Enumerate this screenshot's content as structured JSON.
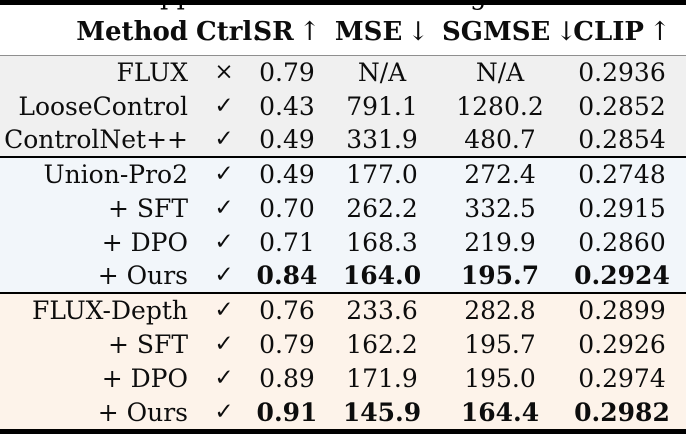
{
  "top_crop": {
    "fragments": [
      {
        "text": "pp"
      },
      {
        "text": "g"
      }
    ]
  },
  "table": {
    "columns": [
      {
        "label": "Method",
        "arrow": ""
      },
      {
        "label": "Ctrl.",
        "arrow": ""
      },
      {
        "label": "SR",
        "arrow": "↑"
      },
      {
        "label": "MSE",
        "arrow": "↓"
      },
      {
        "label": "SGMSE",
        "arrow": "↓"
      },
      {
        "label": "CLIP",
        "arrow": "↑"
      }
    ],
    "group_colors": {
      "baseline": "#f0f0f0",
      "union_pro2": "#f2f6fa",
      "flux_depth": "#fdf3ea"
    },
    "groups": [
      {
        "bg": "#f0f0f0",
        "rows": [
          {
            "method": "FLUX",
            "ctrl": "×",
            "sr": "0.79",
            "mse": "N/A",
            "sgmse": "N/A",
            "clip": "0.2936",
            "bold": false
          },
          {
            "method": "LooseControl",
            "ctrl": "✓",
            "sr": "0.43",
            "mse": "791.1",
            "sgmse": "1280.2",
            "clip": "0.2852",
            "bold": false
          },
          {
            "method": "ControlNet++",
            "ctrl": "✓",
            "sr": "0.49",
            "mse": "331.9",
            "sgmse": "480.7",
            "clip": "0.2854",
            "bold": false
          }
        ]
      },
      {
        "bg": "#f2f6fa",
        "rows": [
          {
            "method": "Union-Pro2",
            "ctrl": "✓",
            "sr": "0.49",
            "mse": "177.0",
            "sgmse": "272.4",
            "clip": "0.2748",
            "bold": false
          },
          {
            "method": "+ SFT",
            "ctrl": "✓",
            "sr": "0.70",
            "mse": "262.2",
            "sgmse": "332.5",
            "clip": "0.2915",
            "bold": false
          },
          {
            "method": "+ DPO",
            "ctrl": "✓",
            "sr": "0.71",
            "mse": "168.3",
            "sgmse": "219.9",
            "clip": "0.2860",
            "bold": false
          },
          {
            "method": "+ Ours",
            "ctrl": "✓",
            "sr": "0.84",
            "mse": "164.0",
            "sgmse": "195.7",
            "clip": "0.2924",
            "bold": true
          }
        ]
      },
      {
        "bg": "#fdf3ea",
        "rows": [
          {
            "method": "FLUX-Depth",
            "ctrl": "✓",
            "sr": "0.76",
            "mse": "233.6",
            "sgmse": "282.8",
            "clip": "0.2899",
            "bold": false
          },
          {
            "method": "+ SFT",
            "ctrl": "✓",
            "sr": "0.79",
            "mse": "162.2",
            "sgmse": "195.7",
            "clip": "0.2926",
            "bold": false
          },
          {
            "method": "+ DPO",
            "ctrl": "✓",
            "sr": "0.89",
            "mse": "171.9",
            "sgmse": "195.0",
            "clip": "0.2974",
            "bold": false
          },
          {
            "method": "+ Ours",
            "ctrl": "✓",
            "sr": "0.91",
            "mse": "145.9",
            "sgmse": "164.4",
            "clip": "0.2982",
            "bold": true
          }
        ]
      }
    ]
  },
  "chart_data": {
    "type": "table",
    "columns": [
      "Method",
      "Ctrl.",
      "SR ↑",
      "MSE ↓",
      "SGMSE ↓",
      "CLIP ↑"
    ],
    "rows": [
      [
        "FLUX",
        "×",
        "0.79",
        "N/A",
        "N/A",
        "0.2936"
      ],
      [
        "LooseControl",
        "✓",
        "0.43",
        "791.1",
        "1280.2",
        "0.2852"
      ],
      [
        "ControlNet++",
        "✓",
        "0.49",
        "331.9",
        "480.7",
        "0.2854"
      ],
      [
        "Union-Pro2",
        "✓",
        "0.49",
        "177.0",
        "272.4",
        "0.2748"
      ],
      [
        "+ SFT",
        "✓",
        "0.70",
        "262.2",
        "332.5",
        "0.2915"
      ],
      [
        "+ DPO",
        "✓",
        "0.71",
        "168.3",
        "219.9",
        "0.2860"
      ],
      [
        "+ Ours",
        "✓",
        "0.84",
        "164.0",
        "195.7",
        "0.2924"
      ],
      [
        "FLUX-Depth",
        "✓",
        "0.76",
        "233.6",
        "282.8",
        "0.2899"
      ],
      [
        "+ SFT",
        "✓",
        "0.79",
        "162.2",
        "195.7",
        "0.2926"
      ],
      [
        "+ DPO",
        "✓",
        "0.89",
        "171.9",
        "195.0",
        "0.2974"
      ],
      [
        "+ Ours",
        "✓",
        "0.91",
        "145.9",
        "164.4",
        "0.2982"
      ]
    ],
    "bold_row_indices": [
      6,
      10
    ],
    "group_row_ranges": [
      [
        0,
        2
      ],
      [
        3,
        6
      ],
      [
        7,
        10
      ]
    ]
  }
}
